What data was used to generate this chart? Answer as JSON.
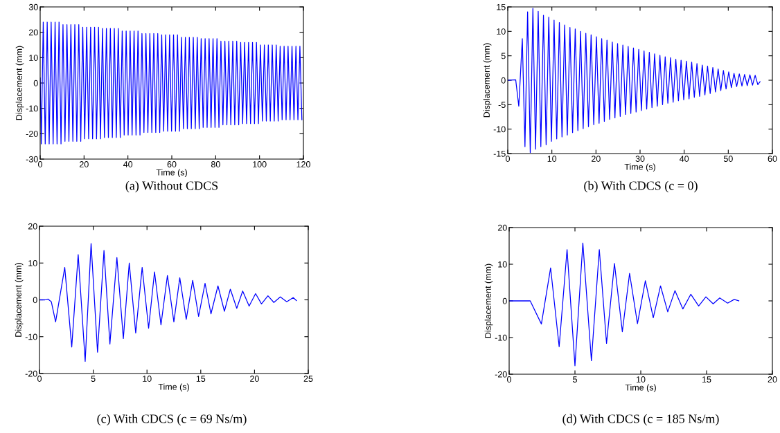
{
  "chart_data": [
    {
      "type": "line",
      "xlabel": "Time (s)",
      "ylabel": "Displacement (mm)",
      "annotations": [
        "(a) Without CDCS"
      ],
      "xlim": [
        0,
        120
      ],
      "ylim": [
        -30,
        30
      ],
      "xticks": [
        0,
        20,
        40,
        60,
        80,
        100,
        120
      ],
      "yticks": [
        -30,
        -20,
        -10,
        0,
        10,
        20,
        30
      ],
      "grid": false,
      "series": [
        {
          "color": "#0000ff",
          "x": [
            0,
            0.5,
            1.4,
            2.3,
            3.2,
            4.1,
            5.0,
            5.9,
            6.8,
            7.7,
            8.6,
            9.5,
            10.4,
            11.3,
            12.2,
            13.1,
            14,
            14.9,
            15.8,
            16.7,
            17.6,
            18.5,
            19.4,
            20.3,
            21.2,
            22.1,
            23,
            23.9,
            24.8,
            25.7,
            26.6,
            27.5,
            28.4,
            29.3,
            30.2,
            31.1,
            32,
            32.9,
            33.8,
            34.7,
            35.6,
            36.5,
            37.4,
            38.3,
            39.2,
            40.1,
            41,
            41.9,
            42.8,
            43.7,
            44.6,
            45.5,
            46.4,
            47.3,
            48.2,
            49.1,
            50,
            50.9,
            51.8,
            52.7,
            53.6,
            54.5,
            55.4,
            56.3,
            57.2,
            58.1,
            59,
            59.9,
            60.8,
            61.7,
            62.6,
            63.5,
            64.4,
            65.3,
            66.2,
            67.1,
            68,
            68.9,
            69.8,
            70.7,
            71.6,
            72.5,
            73.4,
            74.3,
            75.2,
            76.1,
            77,
            77.9,
            78.8,
            79.7,
            80.6,
            81.5,
            82.4,
            83.3,
            84.2,
            85.1,
            86,
            86.9,
            87.8,
            88.7,
            89.6,
            90.5,
            91.4,
            92.3,
            93.2,
            94.1,
            95,
            95.9,
            96.8,
            97.7,
            98.6,
            99.5,
            100.4,
            101.3,
            102.2,
            103.1,
            104,
            104.9,
            105.8,
            106.7,
            107.6,
            108.5,
            109.4,
            110.3,
            111.2,
            112.1,
            113,
            113.9,
            114.8,
            115.7,
            116.6,
            117.5,
            118.4,
            119.3
          ],
          "values": [
            2,
            -24,
            24,
            -24,
            24,
            -24,
            24,
            -24,
            24,
            -24,
            24,
            -24,
            23,
            -23,
            23,
            -23,
            23,
            -23,
            23,
            -23,
            23,
            -23,
            22,
            -22,
            22,
            -22,
            22,
            -22,
            22,
            -22,
            22,
            -22,
            21.5,
            -21.5,
            21.5,
            -21.5,
            21.5,
            -21.5,
            21.5,
            -21.5,
            21.5,
            -21.5,
            20.5,
            -20.5,
            20.5,
            -20.5,
            20.5,
            -20.5,
            20.5,
            -20.5,
            20.5,
            -20.5,
            19.5,
            -19.5,
            19.5,
            -19.5,
            19.5,
            -19.5,
            19.5,
            -19.5,
            19.5,
            -19.5,
            19,
            -19,
            19,
            -19,
            19,
            -19,
            19,
            -19,
            19,
            -19,
            18,
            -18,
            18,
            -18,
            18,
            -18,
            18,
            -18,
            18,
            -18,
            17.5,
            -17.5,
            17.5,
            -17.5,
            17.5,
            -17.5,
            17.5,
            -17.5,
            17.5,
            -17.5,
            16.5,
            -16.5,
            16.5,
            -16.5,
            16.5,
            -16.5,
            16.5,
            -16.5,
            16.5,
            -16.5,
            16,
            -16,
            16,
            -16,
            16,
            -16,
            16,
            -16,
            16,
            -16,
            15,
            -15,
            15,
            -15,
            15,
            -15,
            15,
            -15,
            15,
            -15,
            14.5,
            -14.5,
            14.5,
            -14.5,
            14.5,
            -14.5,
            14.5,
            -14.5,
            14.5,
            -14.5,
            14.5,
            -14.5
          ]
        }
      ]
    },
    {
      "type": "line",
      "xlabel": "Time (s)",
      "ylabel": "Displacement (mm)",
      "annotations": [
        "(b) With CDCS (c = 0)"
      ],
      "xlim": [
        0,
        60
      ],
      "ylim": [
        -15,
        15
      ],
      "xticks": [
        0,
        10,
        20,
        30,
        40,
        50,
        60
      ],
      "yticks": [
        -15,
        -10,
        -5,
        0,
        5,
        10,
        15
      ],
      "grid": false,
      "series": [
        {
          "color": "#0000ff",
          "x": [
            0,
            1.8,
            2.5,
            3.3,
            3.9,
            4.5,
            5.1,
            5.7,
            6.3,
            6.9,
            7.5,
            8.1,
            8.7,
            9.3,
            9.9,
            10.5,
            11.1,
            11.7,
            12.3,
            12.9,
            13.5,
            14.1,
            14.7,
            15.3,
            15.9,
            16.5,
            17.1,
            17.7,
            18.3,
            18.9,
            19.5,
            20.1,
            20.7,
            21.3,
            21.9,
            22.5,
            23.1,
            23.7,
            24.3,
            24.9,
            25.5,
            26.1,
            26.7,
            27.3,
            27.9,
            28.5,
            29.1,
            29.7,
            30.3,
            30.9,
            31.5,
            32.1,
            32.7,
            33.3,
            33.9,
            34.5,
            35.1,
            35.7,
            36.3,
            36.9,
            37.5,
            38.1,
            38.7,
            39.3,
            39.9,
            40.5,
            41.1,
            41.7,
            42.3,
            42.9,
            43.5,
            44.1,
            44.7,
            45.3,
            45.9,
            46.5,
            47.1,
            47.7,
            48.3,
            48.9,
            49.5,
            50.1,
            50.7,
            51.3,
            51.9,
            52.5,
            53.1,
            53.7,
            54.3,
            54.9,
            55.5,
            56.1,
            56.7,
            57.2
          ],
          "values": [
            0,
            0.1,
            -5.3,
            8.5,
            -13.6,
            14,
            -14.8,
            14.7,
            -14.1,
            14.1,
            -13.6,
            13.3,
            -13.2,
            12.9,
            -12.5,
            12.3,
            -12,
            11.8,
            -11.6,
            11.3,
            -11.2,
            10.8,
            -10.7,
            10.5,
            -10.3,
            10,
            -9.9,
            9.6,
            -9.5,
            9.3,
            -9.1,
            8.9,
            -8.8,
            8.5,
            -8.4,
            8.2,
            -8,
            7.8,
            -7.7,
            7.5,
            -7.4,
            7.2,
            -7,
            6.9,
            -6.8,
            6.6,
            -6.5,
            6.3,
            -6.2,
            6,
            -5.9,
            5.7,
            -5.6,
            5.4,
            -5.3,
            5.1,
            -5,
            4.8,
            -4.7,
            4.6,
            -4.5,
            4.3,
            -4.2,
            4.1,
            -4,
            3.9,
            -3.8,
            3.7,
            -3.5,
            3.4,
            -3.3,
            3.1,
            -3,
            2.9,
            -2.7,
            2.6,
            -2.4,
            2.3,
            -2.1,
            2,
            -1.8,
            1.7,
            -1.5,
            1.4,
            -1.3,
            1.3,
            -1.2,
            1.2,
            -1.1,
            1.1,
            -1,
            1,
            -0.9,
            -0.3
          ]
        }
      ]
    },
    {
      "type": "line",
      "xlabel": "Time (s)",
      "ylabel": "Displacement (mm)",
      "annotations": [
        "(c) With CDCS (c = 69 Ns/m)"
      ],
      "xlim": [
        0,
        25
      ],
      "ylim": [
        -20,
        20
      ],
      "xticks": [
        0,
        5,
        10,
        15,
        20,
        25
      ],
      "yticks": [
        -20,
        -10,
        0,
        10,
        20
      ],
      "grid": false,
      "series": [
        {
          "color": "#0000ff",
          "x": [
            0,
            0.5,
            0.8,
            1.1,
            1.5,
            2.35,
            3.0,
            3.6,
            4.25,
            4.8,
            5.4,
            6.0,
            6.55,
            7.2,
            7.8,
            8.35,
            8.95,
            9.55,
            10.15,
            10.7,
            11.3,
            11.9,
            12.5,
            13.05,
            13.65,
            14.25,
            14.8,
            15.4,
            15.95,
            16.6,
            17.2,
            17.75,
            18.35,
            18.9,
            19.5,
            20.1,
            20.65,
            21.25,
            21.8,
            22.4,
            23.0,
            23.6,
            23.9
          ],
          "values": [
            0,
            0,
            0.2,
            -0.5,
            -6,
            8.8,
            -12.8,
            12.3,
            -16.7,
            15.3,
            -14.2,
            13.4,
            -12,
            11.5,
            -10.5,
            10,
            -9,
            8.8,
            -7.7,
            7.6,
            -6.8,
            6.6,
            -6,
            6,
            -5.3,
            5.3,
            -4.5,
            4.5,
            -3.8,
            3.8,
            -3.1,
            2.9,
            -2.3,
            2.4,
            -1.7,
            1.7,
            -1.1,
            1.1,
            -0.7,
            0.8,
            -0.5,
            0.6,
            -0.2
          ]
        }
      ]
    },
    {
      "type": "line",
      "xlabel": "Time (s)",
      "ylabel": "Displacement (mm)",
      "annotations": [
        "(d) With CDCS (c = 185 Ns/m)"
      ],
      "xlim": [
        0,
        20
      ],
      "ylim": [
        -20,
        20
      ],
      "xticks": [
        0,
        5,
        10,
        15,
        20
      ],
      "yticks": [
        -20,
        -10,
        0,
        10,
        20
      ],
      "grid": false,
      "series": [
        {
          "color": "#0000ff",
          "x": [
            0,
            1.6,
            2.45,
            3.15,
            3.8,
            4.4,
            5.0,
            5.6,
            6.25,
            6.85,
            7.4,
            8.0,
            8.6,
            9.15,
            9.75,
            10.35,
            10.95,
            11.5,
            12.05,
            12.6,
            13.2,
            13.8,
            14.4,
            14.95,
            15.5,
            16.0,
            16.6,
            17.1,
            17.45
          ],
          "values": [
            0,
            0,
            -6.3,
            9,
            -12.5,
            14,
            -17.7,
            15.8,
            -16.3,
            14,
            -11.6,
            10.2,
            -8.4,
            7.5,
            -6.2,
            5.5,
            -4.6,
            4.1,
            -3,
            2.8,
            -2.2,
            1.8,
            -1.4,
            1.1,
            -0.8,
            0.8,
            -0.6,
            0.4,
            0
          ]
        }
      ]
    }
  ]
}
